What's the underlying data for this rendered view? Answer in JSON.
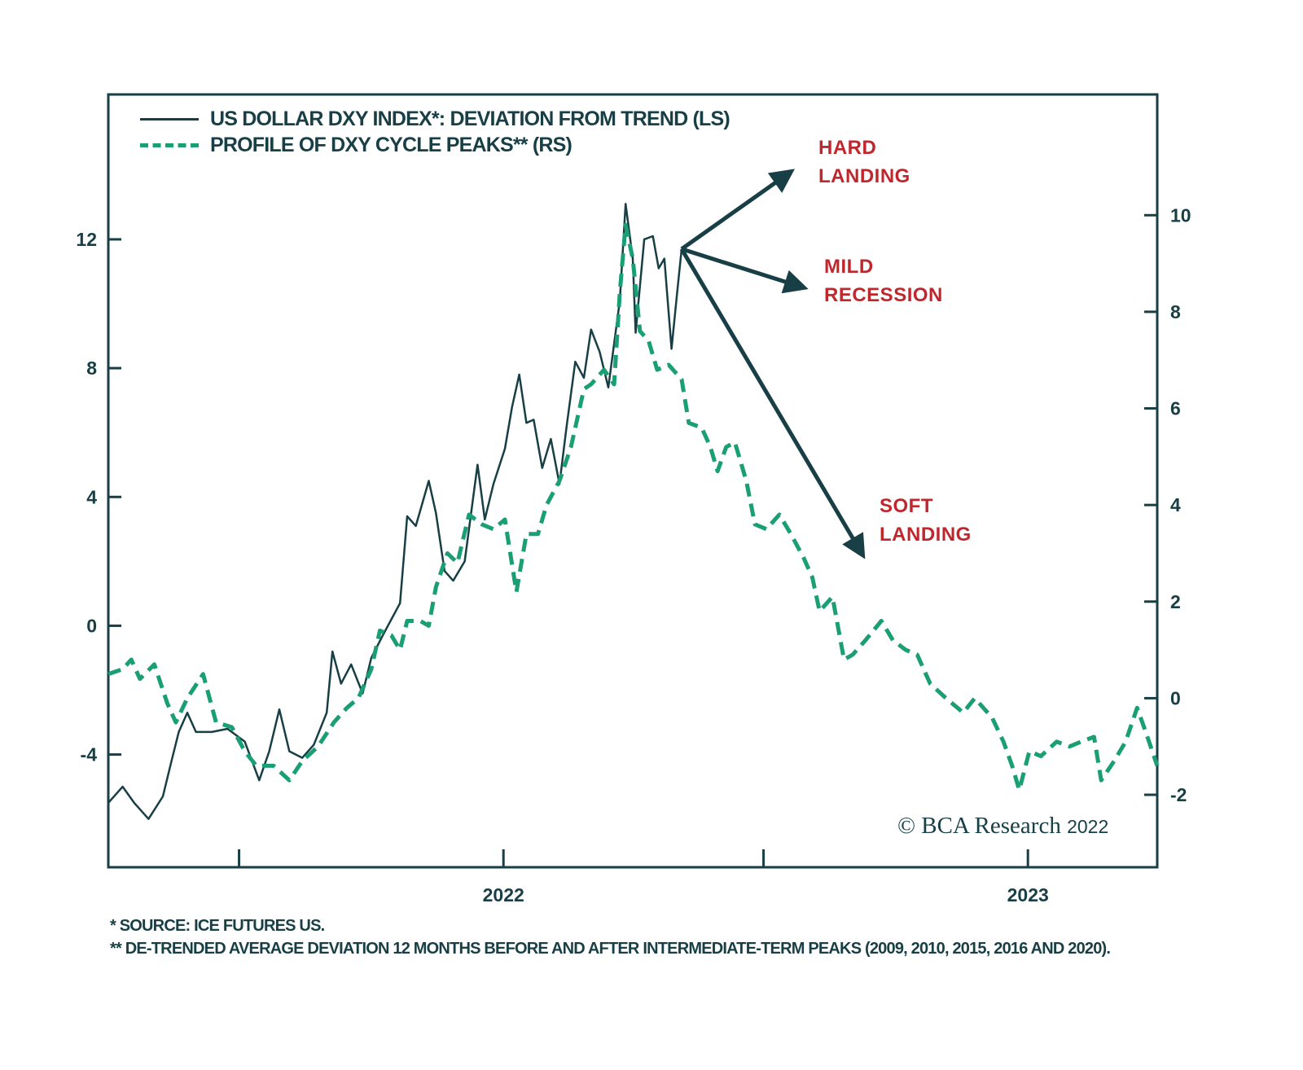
{
  "chart_data": {
    "type": "line",
    "title": "",
    "legend_placement": "top-left",
    "grid": false,
    "x_range": [
      "2021-04-01",
      "2023-04-01"
    ],
    "x_ticks": [
      {
        "date": "2021-07-01",
        "label": ""
      },
      {
        "date": "2022-01-01",
        "label": "2022"
      },
      {
        "date": "2022-07-01",
        "label": ""
      },
      {
        "date": "2023-01-01",
        "label": "2023"
      }
    ],
    "y_left": {
      "range": [
        -7.5,
        16.5
      ],
      "ticks": [
        12,
        8,
        4,
        0,
        -4
      ],
      "tick_labels": [
        "12",
        "8",
        "4",
        "0",
        "-4"
      ]
    },
    "y_right": {
      "range": [
        -3.5,
        12.5
      ],
      "ticks": [
        10,
        8,
        6,
        4,
        2,
        0,
        -2
      ],
      "tick_labels": [
        "10",
        "8",
        "6",
        "4",
        "2",
        "0",
        "-2"
      ]
    },
    "series": [
      {
        "name": "US DOLLAR DXY INDEX*: DEVIATION FROM TREND (LS)",
        "axis": "left",
        "style": "solid",
        "color": "#173f45",
        "points": [
          [
            "2021-04-01",
            -5.5
          ],
          [
            "2021-04-11",
            -5.0
          ],
          [
            "2021-04-19",
            -5.5
          ],
          [
            "2021-04-29",
            -6.0
          ],
          [
            "2021-05-09",
            -5.3
          ],
          [
            "2021-05-15",
            -4.2
          ],
          [
            "2021-05-20",
            -3.3
          ],
          [
            "2021-05-26",
            -2.7
          ],
          [
            "2021-06-01",
            -3.3
          ],
          [
            "2021-06-12",
            -3.3
          ],
          [
            "2021-06-23",
            -3.2
          ],
          [
            "2021-07-05",
            -3.6
          ],
          [
            "2021-07-15",
            -4.8
          ],
          [
            "2021-07-22",
            -3.9
          ],
          [
            "2021-07-29",
            -2.6
          ],
          [
            "2021-08-05",
            -3.9
          ],
          [
            "2021-08-14",
            -4.1
          ],
          [
            "2021-08-22",
            -3.7
          ],
          [
            "2021-08-31",
            -2.7
          ],
          [
            "2021-09-04",
            -0.8
          ],
          [
            "2021-09-10",
            -1.8
          ],
          [
            "2021-09-17",
            -1.2
          ],
          [
            "2021-09-25",
            -2.1
          ],
          [
            "2021-10-01",
            -1.0
          ],
          [
            "2021-10-09",
            -0.3
          ],
          [
            "2021-10-15",
            0.2
          ],
          [
            "2021-10-21",
            0.7
          ],
          [
            "2021-10-26",
            3.4
          ],
          [
            "2021-11-01",
            3.1
          ],
          [
            "2021-11-10",
            4.5
          ],
          [
            "2021-11-15",
            3.5
          ],
          [
            "2021-11-21",
            1.7
          ],
          [
            "2021-11-27",
            1.4
          ],
          [
            "2021-12-05",
            2.0
          ],
          [
            "2021-12-14",
            5.0
          ],
          [
            "2021-12-19",
            3.3
          ],
          [
            "2021-12-25",
            4.4
          ],
          [
            "2022-01-02",
            5.5
          ],
          [
            "2022-01-07",
            6.8
          ],
          [
            "2022-01-12",
            7.8
          ],
          [
            "2022-01-17",
            6.3
          ],
          [
            "2022-01-22",
            6.4
          ],
          [
            "2022-01-28",
            4.9
          ],
          [
            "2022-02-03",
            5.8
          ],
          [
            "2022-02-09",
            4.4
          ],
          [
            "2022-02-14",
            6.2
          ],
          [
            "2022-02-20",
            8.2
          ],
          [
            "2022-02-26",
            7.7
          ],
          [
            "2022-03-03",
            9.2
          ],
          [
            "2022-03-09",
            8.5
          ],
          [
            "2022-03-15",
            7.4
          ],
          [
            "2022-03-23",
            10.1
          ],
          [
            "2022-03-27",
            13.1
          ],
          [
            "2022-04-01",
            11.4
          ],
          [
            "2022-04-03",
            9.1
          ],
          [
            "2022-04-09",
            12.0
          ],
          [
            "2022-04-15",
            12.1
          ],
          [
            "2022-04-19",
            11.1
          ],
          [
            "2022-04-23",
            11.4
          ],
          [
            "2022-04-28",
            8.6
          ],
          [
            "2022-05-02",
            10.4
          ],
          [
            "2022-05-05",
            11.7
          ]
        ]
      },
      {
        "name": "PROFILE OF DXY CYCLE PEAKS** (RS)",
        "axis": "right",
        "style": "dashed",
        "color": "#1a9e74",
        "points": [
          [
            "2021-04-01",
            0.5
          ],
          [
            "2021-04-11",
            0.6
          ],
          [
            "2021-04-17",
            0.8
          ],
          [
            "2021-04-23",
            0.4
          ],
          [
            "2021-05-03",
            0.7
          ],
          [
            "2021-05-12",
            -0.1
          ],
          [
            "2021-05-18",
            -0.5
          ],
          [
            "2021-05-26",
            0.0
          ],
          [
            "2021-06-06",
            0.5
          ],
          [
            "2021-06-15",
            -0.5
          ],
          [
            "2021-06-26",
            -0.6
          ],
          [
            "2021-07-05",
            -1.1
          ],
          [
            "2021-07-13",
            -1.4
          ],
          [
            "2021-07-25",
            -1.4
          ],
          [
            "2021-08-05",
            -1.7
          ],
          [
            "2021-08-14",
            -1.3
          ],
          [
            "2021-08-25",
            -1.0
          ],
          [
            "2021-09-05",
            -0.5
          ],
          [
            "2021-09-14",
            -0.2
          ],
          [
            "2021-09-22",
            0.0
          ],
          [
            "2021-10-01",
            0.6
          ],
          [
            "2021-10-07",
            1.4
          ],
          [
            "2021-10-15",
            1.3
          ],
          [
            "2021-10-21",
            1.0
          ],
          [
            "2021-10-26",
            1.6
          ],
          [
            "2021-11-04",
            1.6
          ],
          [
            "2021-11-10",
            1.5
          ],
          [
            "2021-11-15",
            2.3
          ],
          [
            "2021-11-23",
            3.0
          ],
          [
            "2021-11-30",
            2.8
          ],
          [
            "2021-12-08",
            3.8
          ],
          [
            "2021-12-17",
            3.6
          ],
          [
            "2021-12-25",
            3.5
          ],
          [
            "2022-01-02",
            3.7
          ],
          [
            "2022-01-10",
            2.2
          ],
          [
            "2022-01-17",
            3.4
          ],
          [
            "2022-01-25",
            3.4
          ],
          [
            "2022-01-31",
            4.0
          ],
          [
            "2022-02-09",
            4.5
          ],
          [
            "2022-02-17",
            5.2
          ],
          [
            "2022-02-26",
            6.4
          ],
          [
            "2022-03-03",
            6.5
          ],
          [
            "2022-03-12",
            6.8
          ],
          [
            "2022-03-19",
            6.5
          ],
          [
            "2022-03-23",
            8.4
          ],
          [
            "2022-03-27",
            9.8
          ],
          [
            "2022-04-01",
            9.1
          ],
          [
            "2022-04-06",
            7.6
          ],
          [
            "2022-04-12",
            7.4
          ],
          [
            "2022-04-18",
            6.8
          ],
          [
            "2022-04-26",
            6.9
          ],
          [
            "2022-05-05",
            6.6
          ],
          [
            "2022-05-10",
            5.7
          ],
          [
            "2022-05-19",
            5.6
          ],
          [
            "2022-05-25",
            5.2
          ],
          [
            "2022-05-30",
            4.7
          ],
          [
            "2022-06-05",
            5.2
          ],
          [
            "2022-06-11",
            5.3
          ],
          [
            "2022-06-19",
            4.5
          ],
          [
            "2022-06-25",
            3.6
          ],
          [
            "2022-07-03",
            3.5
          ],
          [
            "2022-07-12",
            3.8
          ],
          [
            "2022-07-20",
            3.4
          ],
          [
            "2022-07-29",
            2.9
          ],
          [
            "2022-08-04",
            2.5
          ],
          [
            "2022-08-09",
            1.8
          ],
          [
            "2022-08-18",
            2.1
          ],
          [
            "2022-08-26",
            0.8
          ],
          [
            "2022-09-01",
            0.9
          ],
          [
            "2022-09-10",
            1.2
          ],
          [
            "2022-09-21",
            1.6
          ],
          [
            "2022-09-29",
            1.2
          ],
          [
            "2022-10-08",
            1.0
          ],
          [
            "2022-10-16",
            0.9
          ],
          [
            "2022-10-25",
            0.3
          ],
          [
            "2022-11-05",
            0.0
          ],
          [
            "2022-11-17",
            -0.3
          ],
          [
            "2022-11-25",
            0.0
          ],
          [
            "2022-12-07",
            -0.4
          ],
          [
            "2022-12-15",
            -0.9
          ],
          [
            "2022-12-21",
            -1.4
          ],
          [
            "2022-12-26",
            -1.9
          ],
          [
            "2023-01-02",
            -1.1
          ],
          [
            "2023-01-10",
            -1.2
          ],
          [
            "2023-01-21",
            -0.9
          ],
          [
            "2023-01-30",
            -1.0
          ],
          [
            "2023-02-07",
            -0.9
          ],
          [
            "2023-02-16",
            -0.8
          ],
          [
            "2023-02-21",
            -1.7
          ],
          [
            "2023-03-02",
            -1.3
          ],
          [
            "2023-03-10",
            -0.9
          ],
          [
            "2023-03-18",
            -0.2
          ],
          [
            "2023-03-24",
            -0.7
          ],
          [
            "2023-04-01",
            -1.4
          ]
        ]
      }
    ],
    "annotations": [
      {
        "text_lines": [
          "HARD",
          "LANDING"
        ],
        "color": "#c0272d",
        "arrow_from": [
          "2022-05-05",
          11.7
        ],
        "arrow_to": [
          "2022-07-20",
          14.1
        ],
        "axis": "left"
      },
      {
        "text_lines": [
          "MILD",
          "RECESSION"
        ],
        "color": "#c0272d",
        "arrow_from": [
          "2022-05-05",
          11.7
        ],
        "arrow_to": [
          "2022-07-29",
          10.5
        ],
        "axis": "left"
      },
      {
        "text_lines": [
          "SOFT",
          "LANDING"
        ],
        "color": "#c0272d",
        "arrow_from": [
          "2022-05-05",
          11.7
        ],
        "arrow_to": [
          "2022-09-08",
          2.2
        ],
        "axis": "left"
      }
    ],
    "arrow_color": "#173f45",
    "footnotes": [
      "*  SOURCE: ICE FUTURES US.",
      "** DE-TRENDED AVERAGE DEVIATION 12 MONTHS BEFORE AND AFTER INTERMEDIATE-TERM PEAKS (2009, 2010, 2015, 2016 AND 2020)."
    ],
    "watermark": {
      "text": "© BCA Research",
      "year": "2022"
    }
  }
}
